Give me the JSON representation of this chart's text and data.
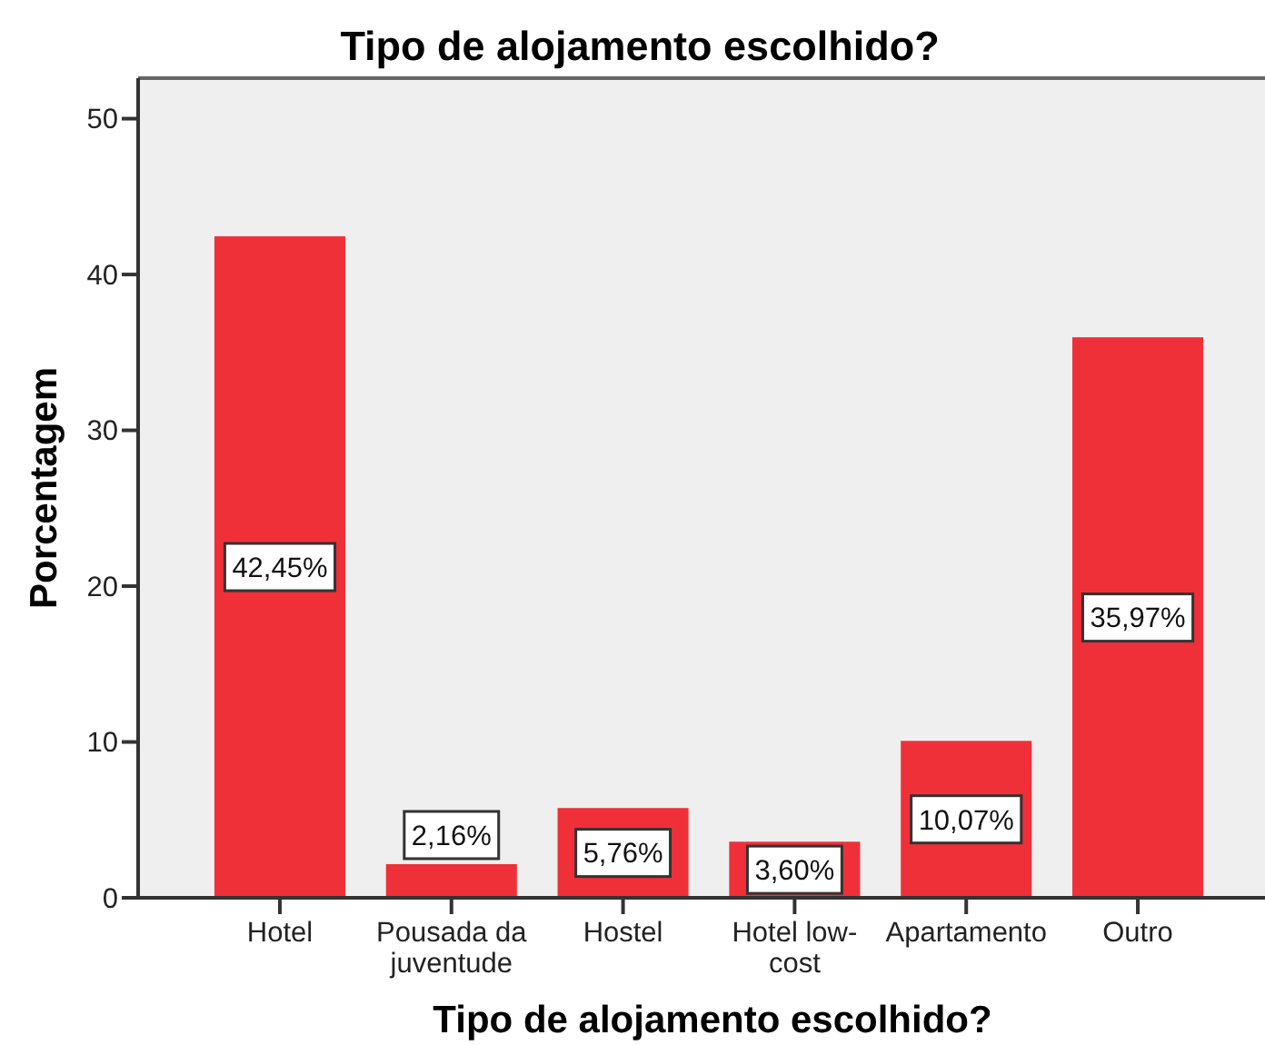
{
  "chart_data": {
    "type": "bar",
    "title": "Tipo de alojamento escolhido?",
    "xlabel": "Tipo de alojamento escolhido?",
    "ylabel": "Porcentagem",
    "categories": [
      "Hotel",
      "Pousada da juventude",
      "Hostel",
      "Hotel low-cost",
      "Apartamento",
      "Outro"
    ],
    "values": [
      42.45,
      2.16,
      5.76,
      3.6,
      10.07,
      35.97
    ],
    "value_labels": [
      "42,45%",
      "2,16%",
      "5,76%",
      "3,60%",
      "10,07%",
      "35,97%"
    ],
    "color": "#ef3039",
    "ylim": [
      0,
      52.6
    ],
    "yticks": [
      0,
      10,
      20,
      30,
      40,
      50
    ]
  }
}
